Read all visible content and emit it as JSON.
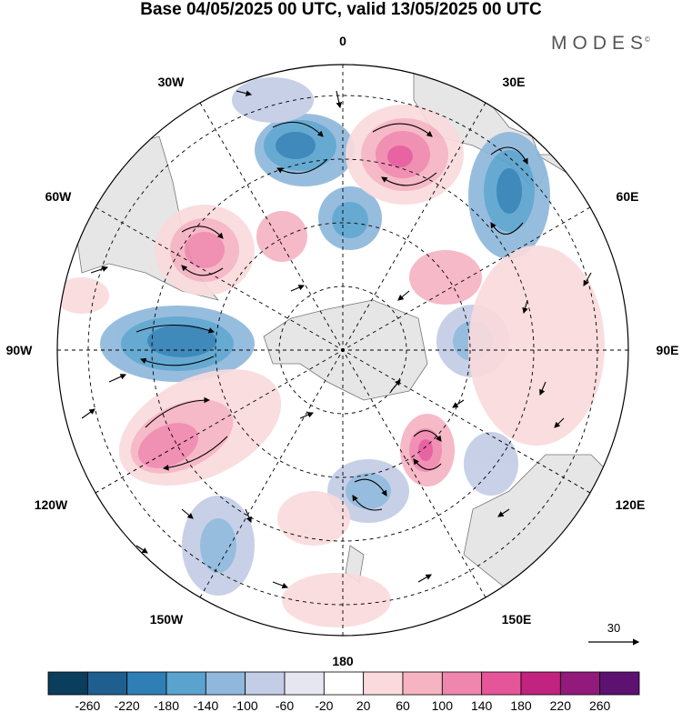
{
  "header": {
    "title": "Base 04/05/2025 00 UTC, valid 13/05/2025 00 UTC",
    "brand": "MODES",
    "brand_mark": "©"
  },
  "map": {
    "projection": "south-polar-stereographic",
    "longitude_labels": [
      "0",
      "30E",
      "60E",
      "90E",
      "120E",
      "150E",
      "180",
      "150W",
      "120W",
      "90W",
      "60W",
      "30W"
    ],
    "reference_vector": {
      "label": "30"
    }
  },
  "colorbar": {
    "colors": [
      "#0b3d5c",
      "#1f5f8f",
      "#2f7fb6",
      "#5aa3cf",
      "#8fb8dc",
      "#c4cde6",
      "#e6e6f1",
      "#ffffff",
      "#fadadd",
      "#f6b3c2",
      "#ef86ad",
      "#e6559a",
      "#c2237f",
      "#921a7a",
      "#5c1270"
    ],
    "tick_labels": [
      "-260",
      "-220",
      "-180",
      "-140",
      "-100",
      "-60",
      "-20",
      "20",
      "60",
      "100",
      "140",
      "180",
      "220",
      "260"
    ]
  }
}
